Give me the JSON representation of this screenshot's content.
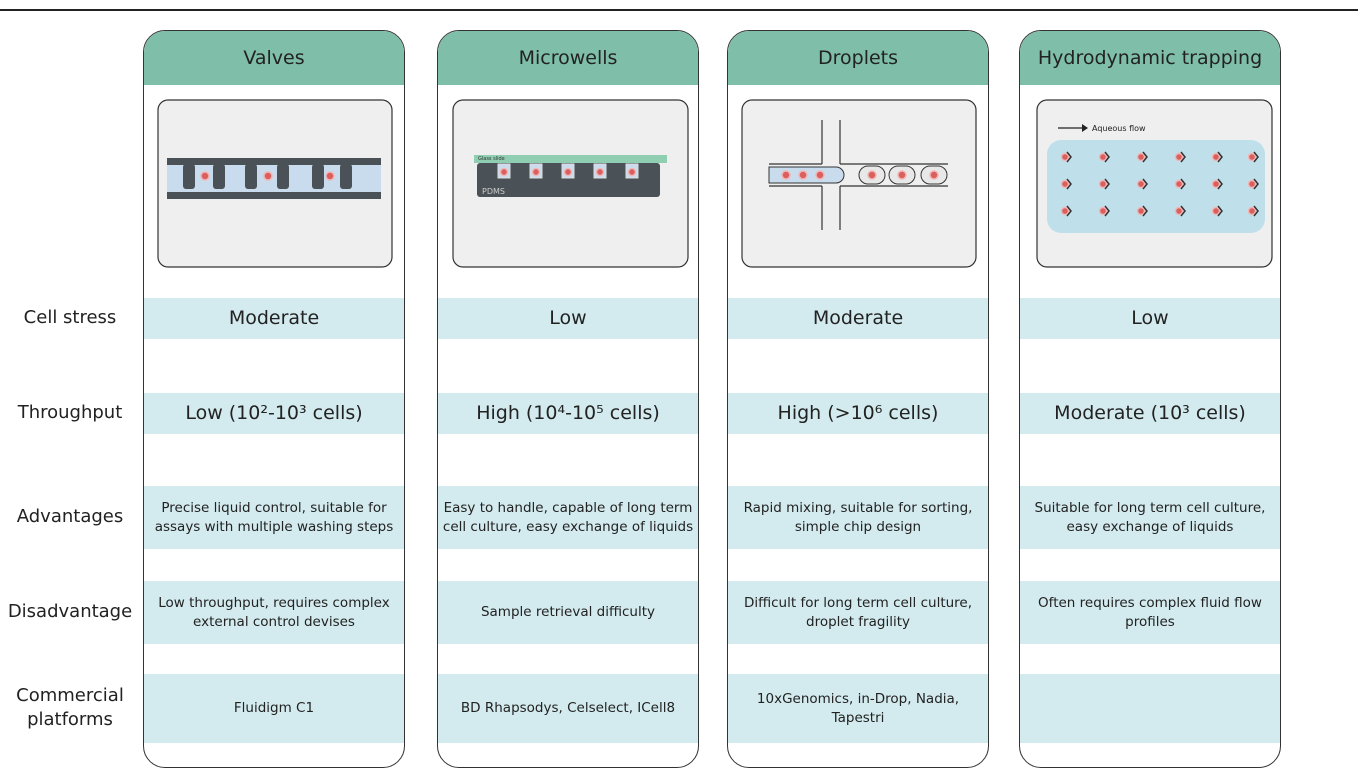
{
  "row_labels": [
    "Cell stress",
    "Throughput",
    "Advantages",
    "Disadvantage",
    "Commercial platforms"
  ],
  "columns": [
    {
      "title": "Valves",
      "cell_stress": "Moderate",
      "throughput": "Low (10²-10³ cells)",
      "advantages": "Precise liquid control, suitable for assays with multiple washing steps",
      "disadvantage": "Low throughput, requires complex external control devises",
      "commercial": "Fluidigm C1"
    },
    {
      "title": "Microwells",
      "cell_stress": "Low",
      "throughput": "High (10⁴-10⁵  cells)",
      "advantages": "Easy to handle, capable of long term cell culture, easy exchange of liquids",
      "disadvantage": "Sample retrieval difficulty",
      "commercial": "BD Rhapsodys, Celselect, ICell8",
      "image_labels": [
        "Glass slide",
        "PDMS"
      ]
    },
    {
      "title": "Droplets",
      "cell_stress": "Moderate",
      "throughput": "High (>10⁶  cells)",
      "advantages": "Rapid mixing, suitable for sorting, simple chip design",
      "disadvantage": "Difficult for long term cell culture, droplet fragility",
      "commercial": "10xGenomics, in-Drop, Nadia, Tapestri"
    },
    {
      "title": "Hydrodynamic trapping",
      "cell_stress": "Low",
      "throughput": "Moderate (10³ cells)",
      "advantages": "Suitable for long term cell culture, easy exchange of liquids",
      "disadvantage": "Often requires complex fluid flow profiles",
      "image_labels": [
        "Aqueous flow"
      ]
    }
  ]
}
